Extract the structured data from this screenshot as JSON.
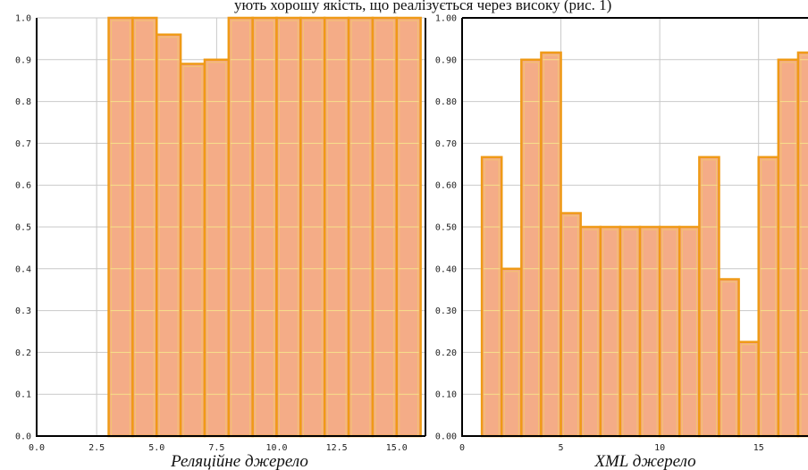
{
  "page": {
    "top_text": "ують хорошу якість, що реалізується через високу (рис. 1)"
  },
  "chart_data": [
    {
      "type": "bar",
      "title": "",
      "caption": "Реляційне джерело",
      "xlabel": "",
      "ylabel": "",
      "xlim": [
        0,
        16.2
      ],
      "ylim": [
        0,
        1.0
      ],
      "x_ticks": [
        "0.0",
        "2.5",
        "5.0",
        "7.5",
        "10.0",
        "12.5",
        "15.0"
      ],
      "y_ticks": [
        "0.0",
        "0.1",
        "0.2",
        "0.3",
        "0.4",
        "0.5",
        "0.6",
        "0.7",
        "0.8",
        "0.9",
        "1.0"
      ],
      "grid": true,
      "colors": {
        "fill": "#f4ac87",
        "edge": "#ef9a17"
      },
      "bins": [
        {
          "x0": 1,
          "x1": 2,
          "value": 0.0
        },
        {
          "x0": 2,
          "x1": 3,
          "value": 0.0
        },
        {
          "x0": 3,
          "x1": 4,
          "value": 1.0
        },
        {
          "x0": 4,
          "x1": 5,
          "value": 1.0
        },
        {
          "x0": 5,
          "x1": 6,
          "value": 0.96
        },
        {
          "x0": 6,
          "x1": 7,
          "value": 0.89
        },
        {
          "x0": 7,
          "x1": 8,
          "value": 0.9
        },
        {
          "x0": 8,
          "x1": 9,
          "value": 1.0
        },
        {
          "x0": 9,
          "x1": 10,
          "value": 1.0
        },
        {
          "x0": 10,
          "x1": 11,
          "value": 1.0
        },
        {
          "x0": 11,
          "x1": 12,
          "value": 1.0
        },
        {
          "x0": 12,
          "x1": 13,
          "value": 1.0
        },
        {
          "x0": 13,
          "x1": 14,
          "value": 1.0
        },
        {
          "x0": 14,
          "x1": 15,
          "value": 1.0
        },
        {
          "x0": 15,
          "x1": 16,
          "value": 1.0
        }
      ]
    },
    {
      "type": "bar",
      "title": "",
      "caption": "XML джерело",
      "xlabel": "",
      "ylabel": "",
      "xlim": [
        0,
        17.5
      ],
      "ylim": [
        0,
        1.0
      ],
      "x_ticks": [
        "0",
        "5",
        "10",
        "15"
      ],
      "y_ticks": [
        "0.00",
        "0.10",
        "0.20",
        "0.30",
        "0.40",
        "0.50",
        "0.60",
        "0.70",
        "0.80",
        "0.90",
        "1.00"
      ],
      "grid": true,
      "colors": {
        "fill": "#f4ac87",
        "edge": "#ef9a17"
      },
      "bins": [
        {
          "x0": 1,
          "x2": 2,
          "x1": 2,
          "value": 0.667
        },
        {
          "x0": 2,
          "x1": 3,
          "value": 0.4
        },
        {
          "x0": 3,
          "x1": 4,
          "value": 0.9
        },
        {
          "x0": 4,
          "x1": 5,
          "value": 0.917
        },
        {
          "x0": 5,
          "x1": 6,
          "value": 0.533
        },
        {
          "x0": 6,
          "x1": 7,
          "value": 0.5
        },
        {
          "x0": 7,
          "x1": 8,
          "value": 0.5
        },
        {
          "x0": 8,
          "x1": 9,
          "value": 0.5
        },
        {
          "x0": 9,
          "x1": 10,
          "value": 0.5
        },
        {
          "x0": 10,
          "x1": 11,
          "value": 0.5
        },
        {
          "x0": 11,
          "x1": 12,
          "value": 0.5
        },
        {
          "x0": 12,
          "x1": 13,
          "value": 0.667
        },
        {
          "x0": 13,
          "x1": 14,
          "value": 0.375
        },
        {
          "x0": 14,
          "x1": 15,
          "value": 0.225
        },
        {
          "x0": 15,
          "x1": 16,
          "value": 0.667
        },
        {
          "x0": 16,
          "x1": 17,
          "value": 0.9
        },
        {
          "x0": 17,
          "x1": 18,
          "value": 0.917
        }
      ]
    }
  ]
}
